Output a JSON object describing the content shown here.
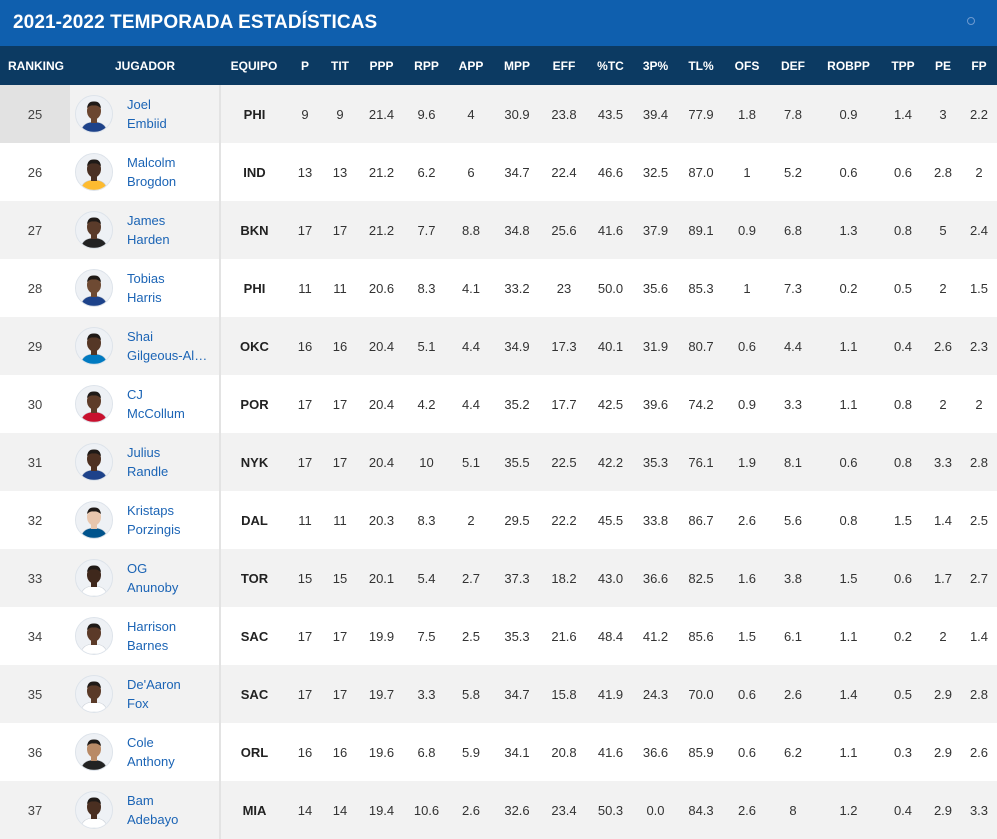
{
  "header": {
    "title": "2021-2022 TEMPORADA  ESTADÍSTICAS"
  },
  "columns": [
    "RANKING",
    "JUGADOR",
    "EQUIPO",
    "P",
    "TIT",
    "PPP",
    "RPP",
    "APP",
    "MPP",
    "EFF",
    "%TC",
    "3P%",
    "TL%",
    "OFS",
    "DEF",
    "ROBPP",
    "TPP",
    "PE",
    "FP"
  ],
  "rows": [
    {
      "rank": "25",
      "first": "Joel",
      "last": "Embiid",
      "team": "PHI",
      "skin": "#6b4630",
      "jersey": "#1d428a",
      "stats": [
        "9",
        "9",
        "21.4",
        "9.6",
        "4",
        "30.9",
        "23.8",
        "43.5",
        "39.4",
        "77.9",
        "1.8",
        "7.8",
        "0.9",
        "1.4",
        "3",
        "2.2"
      ]
    },
    {
      "rank": "26",
      "first": "Malcolm",
      "last": "Brogdon",
      "team": "IND",
      "skin": "#4a3023",
      "jersey": "#fdbb30",
      "stats": [
        "13",
        "13",
        "21.2",
        "6.2",
        "6",
        "34.7",
        "22.4",
        "46.6",
        "32.5",
        "87.0",
        "1",
        "5.2",
        "0.6",
        "0.6",
        "2.8",
        "2"
      ]
    },
    {
      "rank": "27",
      "first": "James",
      "last": "Harden",
      "team": "BKN",
      "skin": "#5a3b2a",
      "jersey": "#222222",
      "stats": [
        "17",
        "17",
        "21.2",
        "7.7",
        "8.8",
        "34.8",
        "25.6",
        "41.6",
        "37.9",
        "89.1",
        "0.9",
        "6.8",
        "1.3",
        "0.8",
        "5",
        "2.4"
      ]
    },
    {
      "rank": "28",
      "first": "Tobias",
      "last": "Harris",
      "team": "PHI",
      "skin": "#6e4a33",
      "jersey": "#1d428a",
      "stats": [
        "11",
        "11",
        "20.6",
        "8.3",
        "4.1",
        "33.2",
        "23",
        "50.0",
        "35.6",
        "85.3",
        "1",
        "7.3",
        "0.2",
        "0.5",
        "2",
        "1.5"
      ]
    },
    {
      "rank": "29",
      "first": "Shai",
      "last": "Gilgeous-Alexander",
      "team": "OKC",
      "skin": "#553726",
      "jersey": "#007ac1",
      "stats": [
        "16",
        "16",
        "20.4",
        "5.1",
        "4.4",
        "34.9",
        "17.3",
        "40.1",
        "31.9",
        "80.7",
        "0.6",
        "4.4",
        "1.1",
        "0.4",
        "2.6",
        "2.3"
      ]
    },
    {
      "rank": "30",
      "first": "CJ",
      "last": "McCollum",
      "team": "POR",
      "skin": "#5e3c29",
      "jersey": "#c8102e",
      "stats": [
        "17",
        "17",
        "20.4",
        "4.2",
        "4.4",
        "35.2",
        "17.7",
        "42.5",
        "39.6",
        "74.2",
        "0.9",
        "3.3",
        "1.1",
        "0.8",
        "2",
        "2"
      ]
    },
    {
      "rank": "31",
      "first": "Julius",
      "last": "Randle",
      "team": "NYK",
      "skin": "#4e3122",
      "jersey": "#1d428a",
      "stats": [
        "17",
        "17",
        "20.4",
        "10",
        "5.1",
        "35.5",
        "22.5",
        "42.2",
        "35.3",
        "76.1",
        "1.9",
        "8.1",
        "0.6",
        "0.8",
        "3.3",
        "2.8"
      ]
    },
    {
      "rank": "32",
      "first": "Kristaps",
      "last": "Porzingis",
      "team": "DAL",
      "skin": "#e8c6ad",
      "jersey": "#00538c",
      "stats": [
        "11",
        "11",
        "20.3",
        "8.3",
        "2",
        "29.5",
        "22.2",
        "45.5",
        "33.8",
        "86.7",
        "2.6",
        "5.6",
        "0.8",
        "1.5",
        "1.4",
        "2.5"
      ]
    },
    {
      "rank": "33",
      "first": "OG",
      "last": "Anunoby",
      "team": "TOR",
      "skin": "#3f281c",
      "jersey": "#ffffff",
      "stats": [
        "15",
        "15",
        "20.1",
        "5.4",
        "2.7",
        "37.3",
        "18.2",
        "43.0",
        "36.6",
        "82.5",
        "1.6",
        "3.8",
        "1.5",
        "0.6",
        "1.7",
        "2.7"
      ]
    },
    {
      "rank": "34",
      "first": "Harrison",
      "last": "Barnes",
      "team": "SAC",
      "skin": "#5b3a28",
      "jersey": "#ffffff",
      "stats": [
        "17",
        "17",
        "19.9",
        "7.5",
        "2.5",
        "35.3",
        "21.6",
        "48.4",
        "41.2",
        "85.6",
        "1.5",
        "6.1",
        "1.1",
        "0.2",
        "2",
        "1.4"
      ]
    },
    {
      "rank": "35",
      "first": "De'Aaron",
      "last": "Fox",
      "team": "SAC",
      "skin": "#5a3a28",
      "jersey": "#ffffff",
      "stats": [
        "17",
        "17",
        "19.7",
        "3.3",
        "5.8",
        "34.7",
        "15.8",
        "41.9",
        "24.3",
        "70.0",
        "0.6",
        "2.6",
        "1.4",
        "0.5",
        "2.9",
        "2.8"
      ]
    },
    {
      "rank": "36",
      "first": "Cole",
      "last": "Anthony",
      "team": "ORL",
      "skin": "#b98a66",
      "jersey": "#222222",
      "stats": [
        "16",
        "16",
        "19.6",
        "6.8",
        "5.9",
        "34.1",
        "20.8",
        "41.6",
        "36.6",
        "85.9",
        "0.6",
        "6.2",
        "1.1",
        "0.3",
        "2.9",
        "2.6"
      ]
    },
    {
      "rank": "37",
      "first": "Bam",
      "last": "Adebayo",
      "team": "MIA",
      "skin": "#4a2f21",
      "jersey": "#ffffff",
      "stats": [
        "14",
        "14",
        "19.4",
        "10.6",
        "2.6",
        "32.6",
        "23.4",
        "50.3",
        "0.0",
        "84.3",
        "2.6",
        "8",
        "1.2",
        "0.4",
        "2.9",
        "3.3"
      ]
    }
  ]
}
